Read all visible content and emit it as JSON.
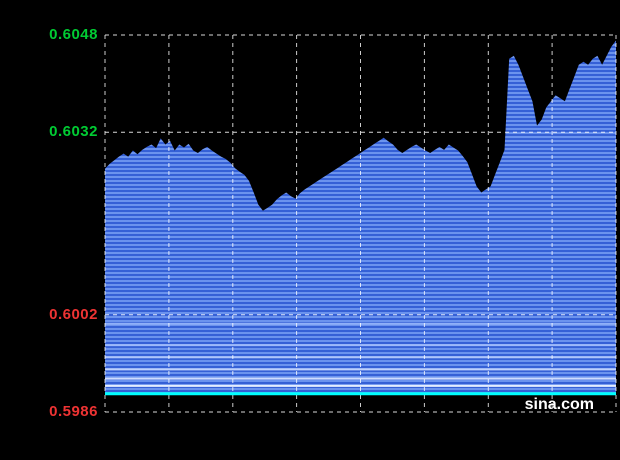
{
  "page": {
    "background": "#000000"
  },
  "watermark": {
    "text": "sina.com",
    "color": "#ffffff"
  },
  "chart_data": {
    "type": "area",
    "title": "",
    "legend": "none",
    "grid": "dashed-white",
    "x_axis": {
      "tick_labels": [],
      "gridline_count": 8
    },
    "y_axis": {
      "min": 0.5986,
      "max": 0.6048,
      "labels": [
        {
          "text": "0.6048",
          "value": 0.6048,
          "color": "#00cc33"
        },
        {
          "text": "0.6032",
          "value": 0.6032,
          "color": "#00cc33"
        },
        {
          "text": "0.6002",
          "value": 0.6002,
          "color": "#ee3333"
        },
        {
          "text": "0.5986",
          "value": 0.5986,
          "color": "#ee3333"
        }
      ]
    },
    "previous_close_line": {
      "value": 0.5989,
      "color": "#00ffff"
    },
    "fill_stripe_colors": [
      "#6b93ee",
      "#3560d6"
    ],
    "highlight_lines": [
      {
        "value": 0.60005,
        "color": "#8fb0f8"
      },
      {
        "value": 0.5997,
        "color": "#9db9fa"
      },
      {
        "value": 0.5995,
        "color": "#aec5fb"
      },
      {
        "value": 0.5993,
        "color": "#c0d2fc"
      },
      {
        "value": 0.59915,
        "color": "#cfdcfe"
      },
      {
        "value": 0.59903,
        "color": "#e4edff"
      }
    ],
    "values": [
      0.6026,
      0.60268,
      0.60274,
      0.6028,
      0.60285,
      0.6028,
      0.6029,
      0.60284,
      0.60291,
      0.60296,
      0.603,
      0.60294,
      0.6031,
      0.603,
      0.60306,
      0.6029,
      0.603,
      0.60295,
      0.60301,
      0.6029,
      0.60286,
      0.60292,
      0.60296,
      0.6029,
      0.60285,
      0.6028,
      0.60276,
      0.6027,
      0.60261,
      0.60255,
      0.6025,
      0.6024,
      0.60221,
      0.60201,
      0.60191,
      0.60196,
      0.60201,
      0.6021,
      0.60216,
      0.60221,
      0.60215,
      0.60211,
      0.6022,
      0.60226,
      0.60231,
      0.60236,
      0.60241,
      0.60246,
      0.60251,
      0.60256,
      0.60261,
      0.60266,
      0.60271,
      0.60276,
      0.60281,
      0.60286,
      0.60291,
      0.60296,
      0.60301,
      0.60306,
      0.60311,
      0.60305,
      0.603,
      0.60291,
      0.60286,
      0.60291,
      0.60296,
      0.603,
      0.60295,
      0.6029,
      0.60286,
      0.60291,
      0.60296,
      0.60291,
      0.603,
      0.60295,
      0.6029,
      0.60281,
      0.60271,
      0.60251,
      0.60231,
      0.60221,
      0.60226,
      0.60231,
      0.60251,
      0.60271,
      0.60291,
      0.60441,
      0.60446,
      0.60431,
      0.60411,
      0.60391,
      0.60371,
      0.60331,
      0.60341,
      0.60361,
      0.60371,
      0.60381,
      0.60376,
      0.60371,
      0.60391,
      0.60411,
      0.60431,
      0.60436,
      0.60431,
      0.60441,
      0.60446,
      0.60431,
      0.60446,
      0.60461,
      0.60471
    ]
  }
}
